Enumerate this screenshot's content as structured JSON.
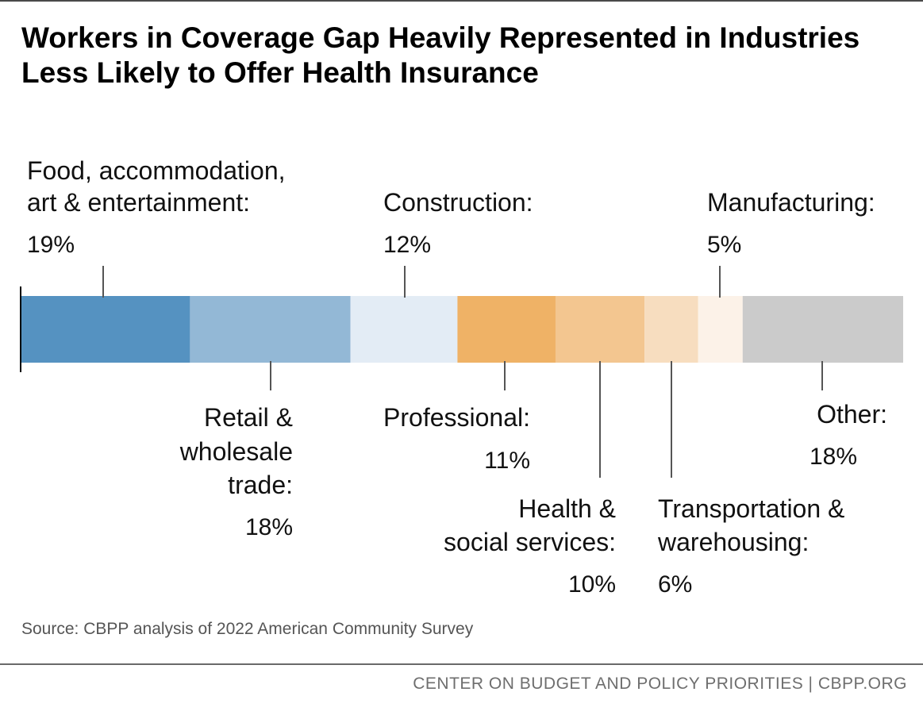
{
  "title": "Workers in Coverage Gap Heavily Represented in Industries Less Likely to Offer Health Insurance",
  "source": "Source: CBPP analysis of 2022 American Community Survey",
  "footer": "CENTER ON BUDGET AND POLICY PRIORITIES | CBPP.ORG",
  "chart_data": {
    "type": "bar",
    "orientation": "stacked-horizontal",
    "unit": "%",
    "categories": [
      "Food, accommodation, art & entertainment:",
      "Retail & wholesale trade:",
      "Construction:",
      "Professional:",
      "Health & social services:",
      "Transportation & warehousing:",
      "Manufacturing:",
      "Other:"
    ],
    "values": [
      19,
      18,
      12,
      11,
      10,
      6,
      5,
      18
    ],
    "value_labels": [
      "19%",
      "18%",
      "12%",
      "11%",
      "10%",
      "6%",
      "5%",
      "18%"
    ],
    "colors": [
      "#5592c1",
      "#93b8d6",
      "#e3ecf5",
      "#efb266",
      "#f3c690",
      "#f7ddbf",
      "#fcf2e8",
      "#cbcbcb"
    ],
    "label_position": [
      "above",
      "below",
      "above",
      "below",
      "below",
      "below",
      "above",
      "below"
    ],
    "xlim": [
      0,
      99
    ]
  }
}
